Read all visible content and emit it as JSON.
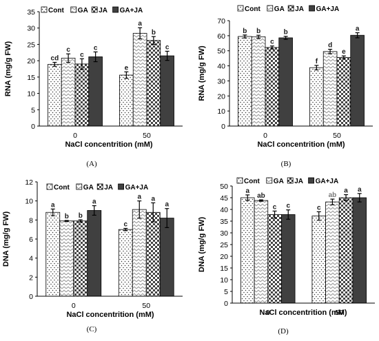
{
  "colors": {
    "Cont": "#ffffff",
    "GA": "#ffffff",
    "JA": "#ffffff",
    "GA+JA": "#404040",
    "sig_text_dark": "#1a1a1a",
    "sig_text_light": "#7a7a7a"
  },
  "chart_data": [
    {
      "type": "bar",
      "panel_label": "(A)",
      "categories": [
        "0",
        "50"
      ],
      "xlabel": "NaCl concentrition (mM)",
      "ylabel": "RNA (mg/g FW)",
      "ylim": [
        0,
        35
      ],
      "yticks": [
        "0",
        "5",
        "10",
        "15",
        "20",
        "25",
        "30",
        "35"
      ],
      "legend_position": "top",
      "series": [
        {
          "name": "Cont",
          "pattern": "dots",
          "values": [
            18.9,
            15.6
          ],
          "errors": [
            0.6,
            1.0
          ],
          "letters": [
            "cd",
            "e"
          ]
        },
        {
          "name": "GA",
          "pattern": "zigzag",
          "values": [
            20.8,
            28.4
          ],
          "errors": [
            1.3,
            1.7
          ],
          "letters": [
            "c",
            "a"
          ]
        },
        {
          "name": "JA",
          "pattern": "checker",
          "values": [
            19.0,
            26.2
          ],
          "errors": [
            1.6,
            1.2
          ],
          "letters": [
            "c",
            "b"
          ]
        },
        {
          "name": "GA+JA",
          "pattern": "solid",
          "values": [
            21.2,
            21.5
          ],
          "errors": [
            1.5,
            1.4
          ],
          "letters": [
            "c",
            "c"
          ]
        }
      ]
    },
    {
      "type": "bar",
      "panel_label": "(B)",
      "categories": [
        "0",
        "50"
      ],
      "xlabel": "NaCl concentrition (mM)",
      "ylabel": "RNA (mg/g FW)",
      "ylim": [
        0,
        70
      ],
      "yticks": [
        "0",
        "10",
        "20",
        "30",
        "40",
        "50",
        "60",
        "70"
      ],
      "legend_position": "top",
      "series": [
        {
          "name": "Cont",
          "pattern": "dots",
          "values": [
            59.5,
            38.8
          ],
          "errors": [
            1.0,
            1.5
          ],
          "letters": [
            "b",
            "f"
          ]
        },
        {
          "name": "GA",
          "pattern": "zigzag",
          "values": [
            59.3,
            49.5
          ],
          "errors": [
            1.0,
            1.5
          ],
          "letters": [
            "b",
            "d"
          ]
        },
        {
          "name": "JA",
          "pattern": "checker",
          "values": [
            52.2,
            45.6
          ],
          "errors": [
            1.0,
            1.0
          ],
          "letters": [
            "c",
            "e"
          ]
        },
        {
          "name": "GA+JA",
          "pattern": "solid",
          "values": [
            58.6,
            60.3
          ],
          "errors": [
            1.0,
            1.7
          ],
          "letters": [
            "b",
            "a"
          ]
        }
      ]
    },
    {
      "type": "bar",
      "panel_label": "(C)",
      "categories": [
        "0",
        "50"
      ],
      "xlabel": "NaCl concentrition (mM)",
      "ylabel": "DNA  (mg/g FW)",
      "ylim": [
        0,
        12
      ],
      "yticks": [
        "0",
        "2",
        "4",
        "6",
        "8",
        "10",
        "12"
      ],
      "legend_position": "top",
      "series": [
        {
          "name": "Cont",
          "pattern": "dots",
          "values": [
            8.8,
            7.0
          ],
          "errors": [
            0.35,
            0.12
          ],
          "letters": [
            "a",
            "c"
          ]
        },
        {
          "name": "GA",
          "pattern": "zigzag",
          "values": [
            7.9,
            9.1
          ],
          "errors": [
            0.05,
            0.9
          ],
          "letters": [
            "b",
            "a"
          ]
        },
        {
          "name": "JA",
          "pattern": "checker",
          "values": [
            7.9,
            8.8
          ],
          "errors": [
            0.12,
            1.0
          ],
          "letters": [
            "b",
            "a"
          ]
        },
        {
          "name": "GA+JA",
          "pattern": "solid",
          "values": [
            9.0,
            8.2
          ],
          "errors": [
            0.5,
            1.0
          ],
          "letters": [
            "a",
            "a"
          ]
        }
      ]
    },
    {
      "type": "bar",
      "panel_label": "(D)",
      "categories": [
        "0",
        "50"
      ],
      "xlabel": "NaCl concentrition (mM)",
      "ylabel": "DNA (mg/g FW)",
      "ylim": [
        0,
        50
      ],
      "yticks": [
        "0",
        "5",
        "10",
        "15",
        "20",
        "25",
        "30",
        "35",
        "40",
        "45",
        "50"
      ],
      "legend_position": "top",
      "series": [
        {
          "name": "Cont",
          "pattern": "dots",
          "values": [
            45.0,
            37.2
          ],
          "errors": [
            1.2,
            1.8
          ],
          "letters": [
            "a",
            "c"
          ]
        },
        {
          "name": "GA",
          "pattern": "zigzag",
          "values": [
            43.8,
            43.2
          ],
          "errors": [
            0.3,
            1.2
          ],
          "letters": [
            "ab",
            "ab"
          ]
        },
        {
          "name": "JA",
          "pattern": "checker",
          "values": [
            37.8,
            45.0
          ],
          "errors": [
            1.5,
            1.3
          ],
          "letters": [
            "c",
            "a"
          ]
        },
        {
          "name": "GA+JA",
          "pattern": "solid",
          "values": [
            37.8,
            45.0
          ],
          "errors": [
            2.0,
            1.8
          ],
          "letters": [
            "c",
            "a"
          ]
        }
      ]
    }
  ]
}
